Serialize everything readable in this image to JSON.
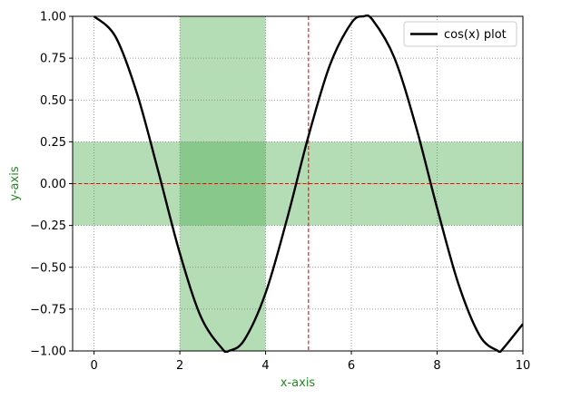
{
  "chart_data": {
    "type": "line",
    "title": "",
    "xlabel": "x-axis",
    "ylabel": "y-axis",
    "label_color": "#228b22",
    "xlim": [
      -0.5,
      10
    ],
    "ylim": [
      -1.0,
      1.0
    ],
    "xticks": [
      0,
      2,
      4,
      6,
      8,
      10
    ],
    "xtick_labels": [
      "0",
      "2",
      "4",
      "6",
      "8",
      "10"
    ],
    "yticks": [
      -1.0,
      -0.75,
      -0.5,
      -0.25,
      0.0,
      0.25,
      0.5,
      0.75,
      1.0
    ],
    "ytick_labels": [
      "−1.00",
      "−0.75",
      "−0.50",
      "−0.25",
      "0.00",
      "0.25",
      "0.50",
      "0.75",
      "1.00"
    ],
    "grid": true,
    "grid_style": "dotted",
    "legend_position": "top-right",
    "series": [
      {
        "name": "cos(x) plot",
        "function": "cos(x)",
        "color": "#000000",
        "x": [
          0,
          0.5,
          1,
          1.5,
          2,
          2.5,
          3,
          3.14,
          3.5,
          4,
          4.5,
          5,
          5.5,
          6,
          6.28,
          6.5,
          7,
          7.5,
          8,
          8.5,
          9,
          9.42,
          9.5,
          10
        ],
        "y": [
          1.0,
          0.878,
          0.54,
          0.071,
          -0.416,
          -0.801,
          -0.99,
          -1.0,
          -0.936,
          -0.654,
          -0.211,
          0.284,
          0.709,
          0.96,
          1.0,
          0.977,
          0.754,
          0.347,
          -0.146,
          -0.602,
          -0.911,
          -1.0,
          -0.997,
          -0.839
        ]
      }
    ],
    "spans": [
      {
        "orientation": "vertical",
        "from": 2,
        "to": 4,
        "color": "#4caf50",
        "opacity": 0.42
      },
      {
        "orientation": "horizontal",
        "from": -0.25,
        "to": 0.25,
        "color": "#4caf50",
        "opacity": 0.42
      }
    ],
    "reference_lines": [
      {
        "orientation": "vertical",
        "value": 5,
        "color": "#ff0000",
        "style": "dashed"
      },
      {
        "orientation": "horizontal",
        "value": 0,
        "color": "#ff0000",
        "style": "dashed"
      }
    ]
  }
}
